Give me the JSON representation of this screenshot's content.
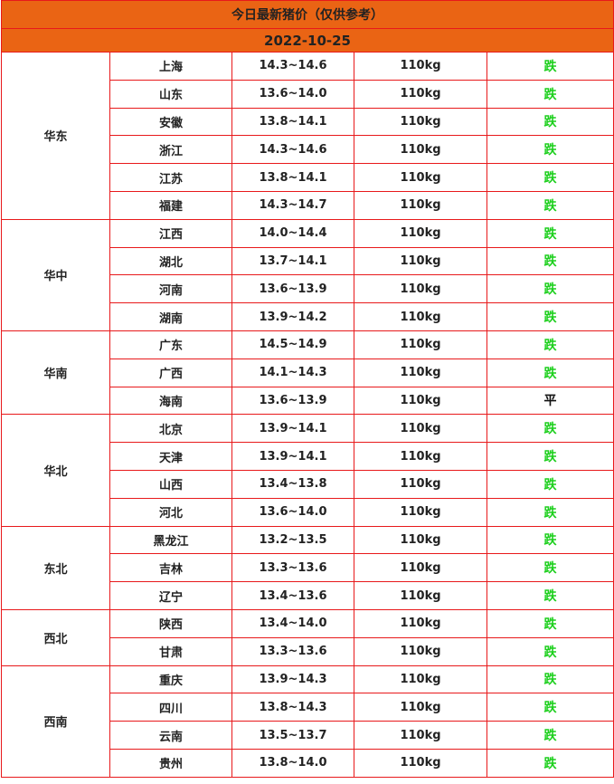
{
  "title": "今日最新猪价（仅供参考）",
  "date": "2022-10-25",
  "colors": {
    "header_bg": "#ea6414",
    "border": "#e8191b",
    "down": "#1ccf1c"
  },
  "regions": [
    {
      "name": "华东",
      "rows": [
        {
          "province": "上海",
          "price": "14.3~14.6",
          "weight": "110kg",
          "trend": "跌"
        },
        {
          "province": "山东",
          "price": "13.6~14.0",
          "weight": "110kg",
          "trend": "跌"
        },
        {
          "province": "安徽",
          "price": "13.8~14.1",
          "weight": "110kg",
          "trend": "跌"
        },
        {
          "province": "浙江",
          "price": "14.3~14.6",
          "weight": "110kg",
          "trend": "跌"
        },
        {
          "province": "江苏",
          "price": "13.8~14.1",
          "weight": "110kg",
          "trend": "跌"
        },
        {
          "province": "福建",
          "price": "14.3~14.7",
          "weight": "110kg",
          "trend": "跌"
        }
      ]
    },
    {
      "name": "华中",
      "rows": [
        {
          "province": "江西",
          "price": "14.0~14.4",
          "weight": "110kg",
          "trend": "跌"
        },
        {
          "province": "湖北",
          "price": "13.7~14.1",
          "weight": "110kg",
          "trend": "跌"
        },
        {
          "province": "河南",
          "price": "13.6~13.9",
          "weight": "110kg",
          "trend": "跌"
        },
        {
          "province": "湖南",
          "price": "13.9~14.2",
          "weight": "110kg",
          "trend": "跌"
        }
      ]
    },
    {
      "name": "华南",
      "rows": [
        {
          "province": "广东",
          "price": "14.5~14.9",
          "weight": "110kg",
          "trend": "跌"
        },
        {
          "province": "广西",
          "price": "14.1~14.3",
          "weight": "110kg",
          "trend": "跌"
        },
        {
          "province": "海南",
          "price": "13.6~13.9",
          "weight": "110kg",
          "trend": "平"
        }
      ]
    },
    {
      "name": "华北",
      "rows": [
        {
          "province": "北京",
          "price": "13.9~14.1",
          "weight": "110kg",
          "trend": "跌"
        },
        {
          "province": "天津",
          "price": "13.9~14.1",
          "weight": "110kg",
          "trend": "跌"
        },
        {
          "province": "山西",
          "price": "13.4~13.8",
          "weight": "110kg",
          "trend": "跌"
        },
        {
          "province": "河北",
          "price": "13.6~14.0",
          "weight": "110kg",
          "trend": "跌"
        }
      ]
    },
    {
      "name": "东北",
      "rows": [
        {
          "province": "黑龙江",
          "price": "13.2~13.5",
          "weight": "110kg",
          "trend": "跌"
        },
        {
          "province": "吉林",
          "price": "13.3~13.6",
          "weight": "110kg",
          "trend": "跌"
        },
        {
          "province": "辽宁",
          "price": "13.4~13.6",
          "weight": "110kg",
          "trend": "跌"
        }
      ]
    },
    {
      "name": "西北",
      "rows": [
        {
          "province": "陕西",
          "price": "13.4~14.0",
          "weight": "110kg",
          "trend": "跌"
        },
        {
          "province": "甘肃",
          "price": "13.3~13.6",
          "weight": "110kg",
          "trend": "跌"
        }
      ]
    },
    {
      "name": "西南",
      "rows": [
        {
          "province": "重庆",
          "price": "13.9~14.3",
          "weight": "110kg",
          "trend": "跌"
        },
        {
          "province": "四川",
          "price": "13.8~14.3",
          "weight": "110kg",
          "trend": "跌"
        },
        {
          "province": "云南",
          "price": "13.5~13.7",
          "weight": "110kg",
          "trend": "跌"
        },
        {
          "province": "贵州",
          "price": "13.8~14.0",
          "weight": "110kg",
          "trend": "跌"
        }
      ]
    }
  ]
}
